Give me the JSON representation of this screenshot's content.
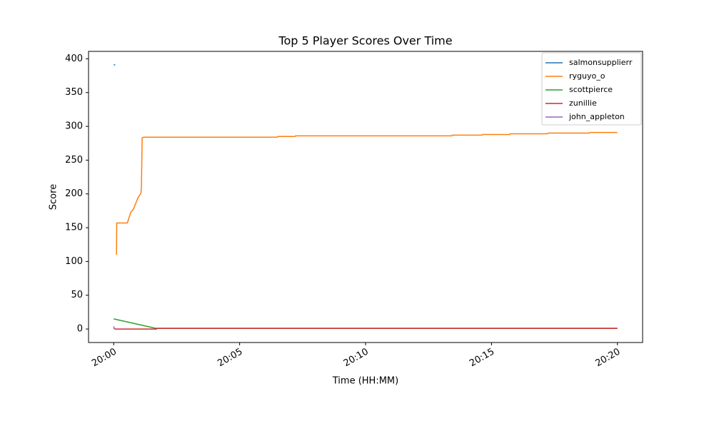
{
  "chart_data": {
    "type": "line",
    "title": "Top 5 Player Scores Over Time",
    "xlabel": "Time (HH:MM)",
    "ylabel": "Score",
    "xlim": [
      1199,
      1221
    ],
    "ylim": [
      -20,
      411
    ],
    "xticks": [
      {
        "value": 1200,
        "label": "20:00"
      },
      {
        "value": 1205,
        "label": "20:05"
      },
      {
        "value": 1210,
        "label": "20:10"
      },
      {
        "value": 1215,
        "label": "20:15"
      },
      {
        "value": 1220,
        "label": "20:20"
      }
    ],
    "yticks": [
      0,
      50,
      100,
      150,
      200,
      250,
      300,
      350,
      400
    ],
    "legend": "upper right",
    "series": [
      {
        "name": "salmonsupplierr",
        "color": "#1f77b4",
        "x": [
          1200.0,
          1200.06
        ],
        "values": [
          391,
          391
        ]
      },
      {
        "name": "ryguyo_o",
        "color": "#ff7f0e",
        "x": [
          1200.11,
          1200.12,
          1200.54,
          1200.68,
          1200.79,
          1200.96,
          1201.08,
          1201.1,
          1201.13,
          1201.19,
          1206.5,
          1206.52,
          1207.2,
          1207.22,
          1213.43,
          1213.45,
          1214.62,
          1214.64,
          1215.72,
          1215.74,
          1217.22,
          1217.24,
          1218.9,
          1218.92,
          1220.0
        ],
        "values": [
          110,
          157,
          157,
          173,
          178,
          194,
          201,
          210,
          283,
          284,
          284,
          285,
          285,
          286,
          286,
          287,
          287,
          288,
          288,
          289,
          289,
          290,
          290,
          291,
          291
        ]
      },
      {
        "name": "scottpierce",
        "color": "#2ca02c",
        "x": [
          1200.0,
          1201.67,
          1220.0
        ],
        "values": [
          15,
          1,
          1
        ]
      },
      {
        "name": "zunillie",
        "color": "#d62728",
        "x": [
          1200.03,
          1200.05,
          1201.7,
          1201.72,
          1220.0
        ],
        "values": [
          1,
          0,
          0,
          1,
          1
        ]
      },
      {
        "name": "john_appleton",
        "color": "#9467bd",
        "x": [
          1200.0,
          1200.02
        ],
        "values": [
          4,
          0
        ]
      }
    ]
  }
}
